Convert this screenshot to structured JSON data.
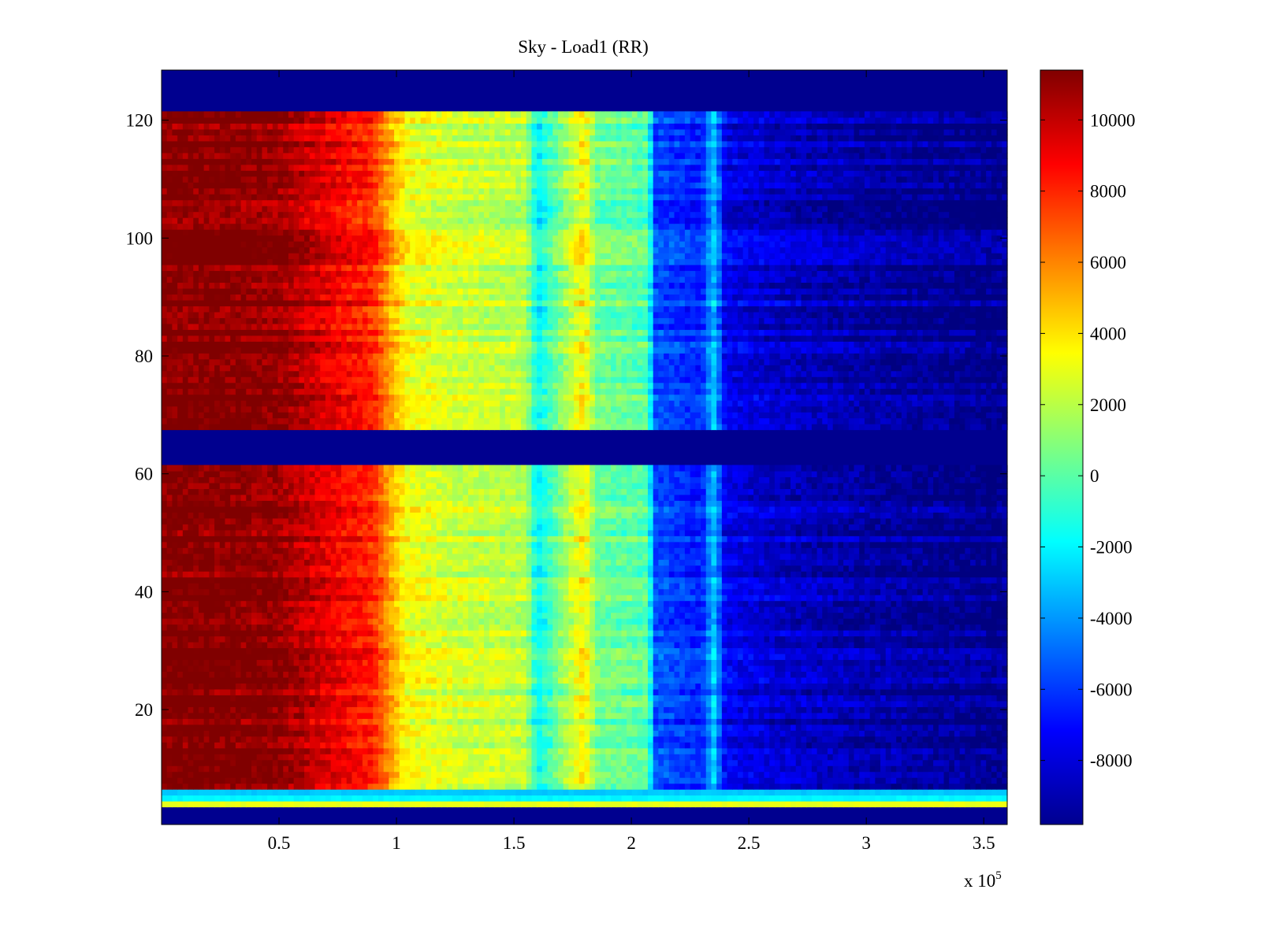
{
  "chart_data": {
    "type": "heatmap",
    "title": "Sky - Load1 (RR)",
    "xlabel": "",
    "ylabel": "",
    "x_multiplier_label": "x 10",
    "x_multiplier_exponent": "5",
    "xlim": [
      0,
      3.6
    ],
    "ylim": [
      0.5,
      128.5
    ],
    "x_ticks": [
      0.5,
      1,
      1.5,
      2,
      2.5,
      3,
      3.5
    ],
    "x_tick_labels": [
      "0.5",
      "1",
      "1.5",
      "2",
      "2.5",
      "3",
      "3.5"
    ],
    "y_ticks": [
      20,
      40,
      60,
      80,
      100,
      120
    ],
    "y_tick_labels": [
      "20",
      "40",
      "60",
      "80",
      "100",
      "120"
    ],
    "colormap": "jet",
    "clim": [
      -9800,
      11400
    ],
    "colorbar_ticks": [
      10000,
      8000,
      6000,
      4000,
      2000,
      0,
      -2000,
      -4000,
      -6000,
      -8000
    ],
    "colorbar_tick_labels": [
      "10000",
      "8000",
      "6000",
      "4000",
      "2000",
      "0",
      "-2000",
      "-4000",
      "-6000",
      "-8000"
    ],
    "column_profile": {
      "x": [
        0.0,
        0.25,
        0.5,
        0.75,
        0.9,
        1.0,
        1.05,
        1.25,
        1.55,
        1.6,
        1.72,
        1.8,
        1.85,
        2.07,
        2.1,
        2.3,
        2.35,
        2.4,
        2.6,
        2.9,
        3.3,
        3.6
      ],
      "values": [
        11400,
        11400,
        11000,
        9000,
        8000,
        4500,
        3200,
        2500,
        2000,
        -2000,
        1500,
        3800,
        500,
        0,
        -5500,
        -6500,
        -3000,
        -7500,
        -8200,
        -8800,
        -9300,
        -9600
      ]
    },
    "empty_rows": [
      [
        1,
        3
      ],
      [
        62,
        67
      ],
      [
        122,
        128
      ]
    ],
    "special_rows": [
      {
        "row": 4,
        "value": 3000
      },
      {
        "row": 5,
        "value": -2000
      },
      {
        "row": 6,
        "value": -3000
      }
    ]
  }
}
